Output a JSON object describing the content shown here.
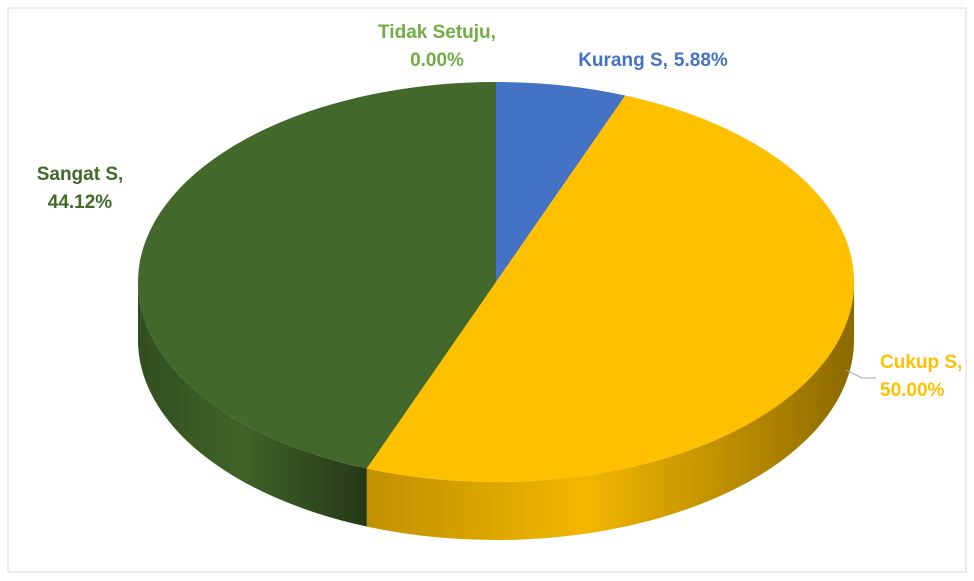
{
  "chart_data": {
    "type": "pie3d",
    "categories": [
      "Tidak Setuju",
      "Kurang S",
      "Cukup S",
      "Sangat S"
    ],
    "values": [
      0.0,
      5.88,
      50.0,
      44.12
    ],
    "value_labels": [
      "0.00%",
      "5.88%",
      "50.00%",
      "44.12%"
    ],
    "separator": ",",
    "colors": [
      "#70ad47",
      "#4472c4",
      "#ffc000",
      "#43682b"
    ]
  }
}
